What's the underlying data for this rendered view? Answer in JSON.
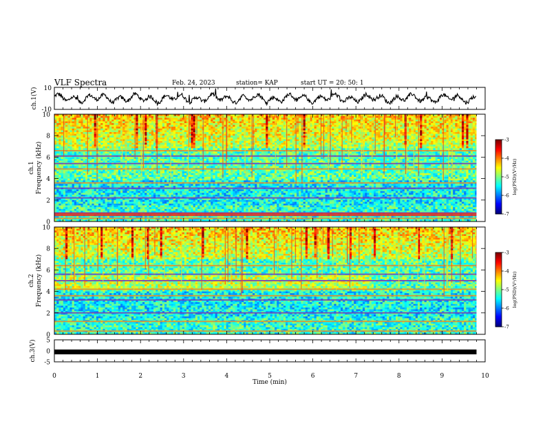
{
  "header": {
    "title": "VLF Spectra",
    "date": "Feb. 24, 2023",
    "station": "station= KAP",
    "start": "start  UT  =   20: 50: 1"
  },
  "chart_data": [
    {
      "type": "line",
      "panel": "ch1-waveform",
      "ylabel": "ch.1(V)",
      "ylim": [
        -10,
        10
      ],
      "yticks": [
        "10",
        "-10"
      ],
      "xlim": [
        0,
        10
      ],
      "series": [
        {
          "values_note": "",
          "values": []
        }
      ]
    },
    {
      "type": "heatmap",
      "panel": "ch1-spectrogram",
      "ylabel": [
        "ch.1",
        "Frequency (kHz)"
      ],
      "ylim": [
        0,
        10
      ],
      "yticks": [
        "0",
        "2",
        "4",
        "6",
        "8",
        "10"
      ],
      "xlim": [
        0,
        9.8
      ],
      "colorbar": {
        "label": "log(PSD)(V²/Hz)",
        "range": [
          -7,
          -3
        ],
        "ticks": [
          "-3",
          "-4",
          "-5",
          "-6",
          "-7"
        ]
      },
      "bands_khz": [
        0.3,
        0.8,
        2.2,
        3.1,
        3.6,
        4.9,
        5.4,
        6.1,
        6.6
      ],
      "bright_band_khz": [
        0.5,
        0.8
      ],
      "high_activity_khz": [
        7.5,
        10
      ]
    },
    {
      "type": "heatmap",
      "panel": "ch2-spectrogram",
      "ylabel": [
        "ch.2",
        "Frequency (kHz)"
      ],
      "ylim": [
        0,
        10
      ],
      "yticks": [
        "0",
        "2",
        "4",
        "6",
        "8",
        "10"
      ],
      "xlim": [
        0,
        9.8
      ],
      "colorbar": {
        "label": "log(PSD)(V²/Hz)",
        "range": [
          -7,
          -3
        ],
        "ticks": [
          "-3",
          "-4",
          "-5",
          "-6",
          "-7"
        ]
      },
      "bands_khz": [
        0.3,
        1.2,
        2.0,
        3.2,
        3.6,
        4.2,
        5.0,
        5.6,
        6.4
      ],
      "high_activity_khz": [
        7.0,
        10
      ]
    },
    {
      "type": "line",
      "panel": "ch3-level",
      "ylabel": "ch.3(V)",
      "ylim": [
        -5,
        5
      ],
      "yticks": [
        "5",
        "0",
        "-5"
      ],
      "value": -0.5,
      "xlim": [
        0,
        9.8
      ]
    }
  ],
  "xaxis": {
    "label": "Time  (min)",
    "ticks": [
      "0",
      "1",
      "2",
      "3",
      "4",
      "5",
      "6",
      "7",
      "8",
      "9",
      "10"
    ],
    "range": [
      0,
      10
    ]
  }
}
